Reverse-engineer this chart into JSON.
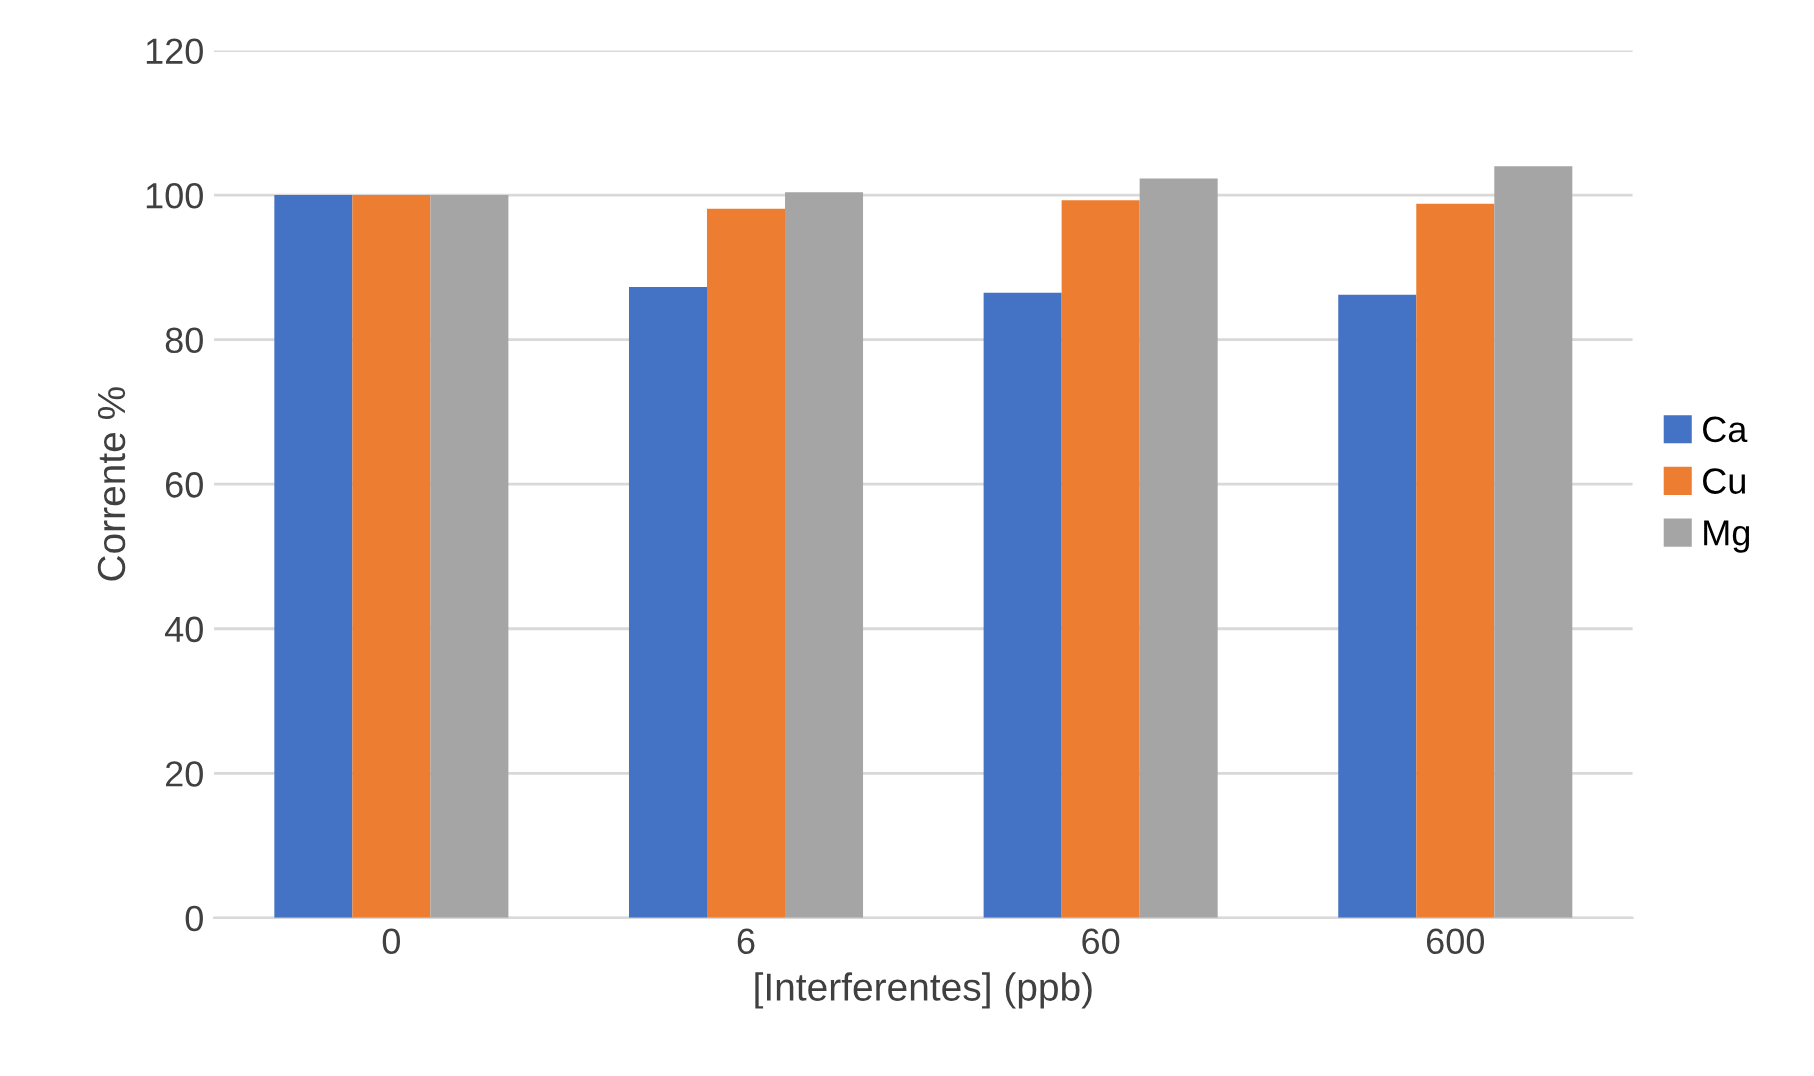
{
  "chart_data": {
    "type": "bar",
    "xlabel": "[Interferentes] (ppb)",
    "ylabel": "Corrente %",
    "categories": [
      "0",
      "6",
      "60",
      "600"
    ],
    "series": [
      {
        "name": "Ca",
        "color": "#4472c4",
        "values": [
          100,
          87.3,
          86.5,
          86.2
        ]
      },
      {
        "name": "Cu",
        "color": "#ed7d31",
        "values": [
          100,
          98.1,
          99.3,
          98.8
        ]
      },
      {
        "name": "Mg",
        "color": "#a5a5a5",
        "values": [
          100,
          100.4,
          102.3,
          104
        ]
      }
    ],
    "ylim": [
      0,
      120
    ],
    "yticks": [
      0,
      20,
      40,
      60,
      80,
      100,
      120
    ],
    "grid": "y",
    "legend": "right"
  }
}
